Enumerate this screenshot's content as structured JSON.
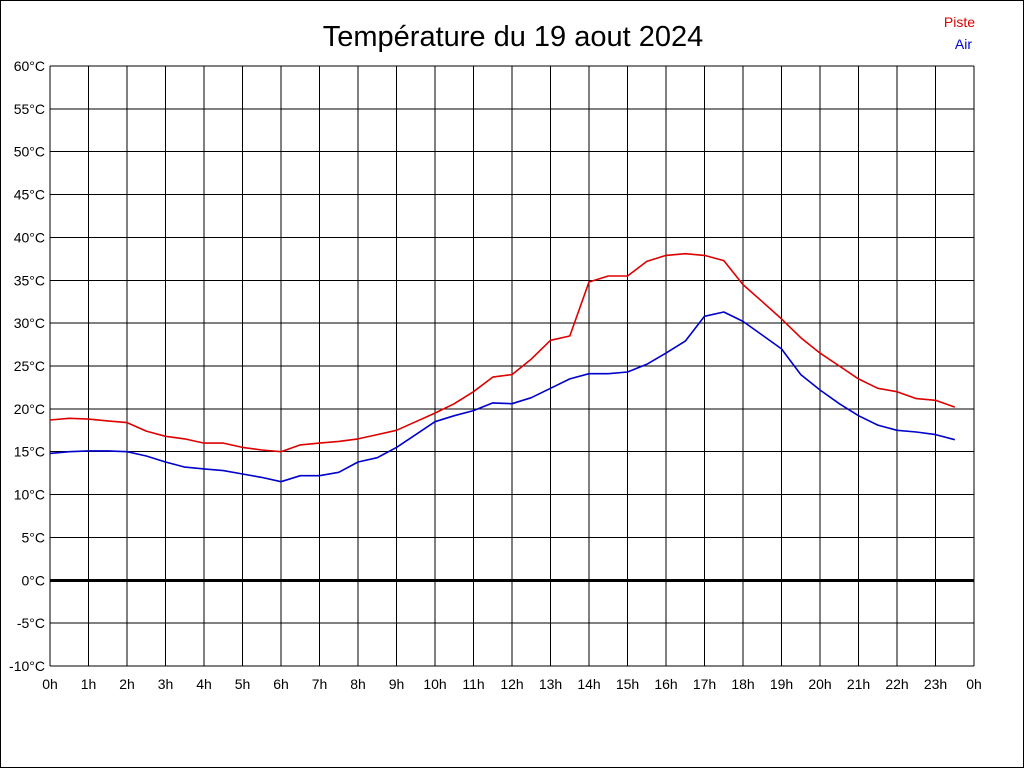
{
  "chart_data": {
    "type": "line",
    "title": "Température du 19 aout 2024",
    "xlabel": "",
    "ylabel": "",
    "x_unit": "hour",
    "xlim": [
      0,
      24
    ],
    "ylim": [
      -10,
      60
    ],
    "grid": true,
    "legend_position": "top-right",
    "y_ticks": [
      {
        "value": 60,
        "label": "60°C"
      },
      {
        "value": 55,
        "label": "55°C"
      },
      {
        "value": 50,
        "label": "50°C"
      },
      {
        "value": 45,
        "label": "45°C"
      },
      {
        "value": 40,
        "label": "40°C"
      },
      {
        "value": 35,
        "label": "35°C"
      },
      {
        "value": 30,
        "label": "30°C"
      },
      {
        "value": 25,
        "label": "25°C"
      },
      {
        "value": 20,
        "label": "20°C"
      },
      {
        "value": 15,
        "label": "15°C"
      },
      {
        "value": 10,
        "label": "10°C"
      },
      {
        "value": 5,
        "label": "5°C"
      },
      {
        "value": 0,
        "label": "0°C"
      },
      {
        "value": -5,
        "label": "-5°C"
      },
      {
        "value": -10,
        "label": "-10°C"
      }
    ],
    "x_ticks": [
      {
        "value": 0,
        "label": "0h"
      },
      {
        "value": 1,
        "label": "1h"
      },
      {
        "value": 2,
        "label": "2h"
      },
      {
        "value": 3,
        "label": "3h"
      },
      {
        "value": 4,
        "label": "4h"
      },
      {
        "value": 5,
        "label": "5h"
      },
      {
        "value": 6,
        "label": "6h"
      },
      {
        "value": 7,
        "label": "7h"
      },
      {
        "value": 8,
        "label": "8h"
      },
      {
        "value": 9,
        "label": "9h"
      },
      {
        "value": 10,
        "label": "10h"
      },
      {
        "value": 11,
        "label": "11h"
      },
      {
        "value": 12,
        "label": "12h"
      },
      {
        "value": 13,
        "label": "13h"
      },
      {
        "value": 14,
        "label": "14h"
      },
      {
        "value": 15,
        "label": "15h"
      },
      {
        "value": 16,
        "label": "16h"
      },
      {
        "value": 17,
        "label": "17h"
      },
      {
        "value": 18,
        "label": "18h"
      },
      {
        "value": 19,
        "label": "19h"
      },
      {
        "value": 20,
        "label": "20h"
      },
      {
        "value": 21,
        "label": "21h"
      },
      {
        "value": 22,
        "label": "22h"
      },
      {
        "value": 23,
        "label": "23h"
      },
      {
        "value": 24,
        "label": "0h"
      }
    ],
    "series": [
      {
        "name": "Piste",
        "color": "#dd0000",
        "points": [
          [
            0,
            18.7
          ],
          [
            0.5,
            18.9
          ],
          [
            1,
            18.8
          ],
          [
            1.5,
            18.6
          ],
          [
            2,
            18.4
          ],
          [
            2.5,
            17.4
          ],
          [
            3,
            16.8
          ],
          [
            3.5,
            16.5
          ],
          [
            4,
            16.0
          ],
          [
            4.5,
            16.0
          ],
          [
            5,
            15.5
          ],
          [
            5.5,
            15.2
          ],
          [
            6,
            15.0
          ],
          [
            6.5,
            15.8
          ],
          [
            7,
            16.0
          ],
          [
            7.5,
            16.2
          ],
          [
            8,
            16.5
          ],
          [
            8.5,
            17.0
          ],
          [
            9,
            17.5
          ],
          [
            9.5,
            18.5
          ],
          [
            10,
            19.5
          ],
          [
            10.5,
            20.6
          ],
          [
            11,
            22.0
          ],
          [
            11.5,
            23.7
          ],
          [
            12,
            24.0
          ],
          [
            12.5,
            25.8
          ],
          [
            13,
            28.0
          ],
          [
            13.5,
            28.5
          ],
          [
            14,
            34.8
          ],
          [
            14.5,
            35.5
          ],
          [
            15,
            35.5
          ],
          [
            15.5,
            37.2
          ],
          [
            16,
            37.9
          ],
          [
            16.5,
            38.1
          ],
          [
            17,
            37.9
          ],
          [
            17.5,
            37.3
          ],
          [
            18,
            34.5
          ],
          [
            18.5,
            32.5
          ],
          [
            19,
            30.5
          ],
          [
            19.5,
            28.3
          ],
          [
            20,
            26.5
          ],
          [
            20.5,
            25.0
          ],
          [
            21,
            23.5
          ],
          [
            21.5,
            22.4
          ],
          [
            22,
            22.0
          ],
          [
            22.5,
            21.2
          ],
          [
            23,
            21.0
          ],
          [
            23.5,
            20.2
          ]
        ]
      },
      {
        "name": "Air",
        "color": "#0000cc",
        "points": [
          [
            0,
            14.8
          ],
          [
            0.5,
            15.0
          ],
          [
            1,
            15.1
          ],
          [
            1.5,
            15.1
          ],
          [
            2,
            15.0
          ],
          [
            2.5,
            14.5
          ],
          [
            3,
            13.8
          ],
          [
            3.5,
            13.2
          ],
          [
            4,
            13.0
          ],
          [
            4.5,
            12.8
          ],
          [
            5,
            12.4
          ],
          [
            5.5,
            12.0
          ],
          [
            6,
            11.5
          ],
          [
            6.5,
            12.2
          ],
          [
            7,
            12.2
          ],
          [
            7.5,
            12.6
          ],
          [
            8,
            13.8
          ],
          [
            8.5,
            14.3
          ],
          [
            9,
            15.5
          ],
          [
            9.5,
            17.0
          ],
          [
            10,
            18.5
          ],
          [
            10.5,
            19.2
          ],
          [
            11,
            19.8
          ],
          [
            11.5,
            20.7
          ],
          [
            12,
            20.6
          ],
          [
            12.5,
            21.3
          ],
          [
            13,
            22.4
          ],
          [
            13.5,
            23.5
          ],
          [
            14,
            24.1
          ],
          [
            14.5,
            24.1
          ],
          [
            15,
            24.3
          ],
          [
            15.5,
            25.2
          ],
          [
            16,
            26.5
          ],
          [
            16.5,
            27.9
          ],
          [
            17,
            30.8
          ],
          [
            17.5,
            31.3
          ],
          [
            18,
            30.2
          ],
          [
            18.5,
            28.6
          ],
          [
            19,
            27.0
          ],
          [
            19.5,
            24.0
          ],
          [
            20,
            22.2
          ],
          [
            20.5,
            20.6
          ],
          [
            21,
            19.2
          ],
          [
            21.5,
            18.1
          ],
          [
            22,
            17.5
          ],
          [
            22.5,
            17.3
          ],
          [
            23,
            17.0
          ],
          [
            23.5,
            16.4
          ]
        ]
      }
    ]
  }
}
